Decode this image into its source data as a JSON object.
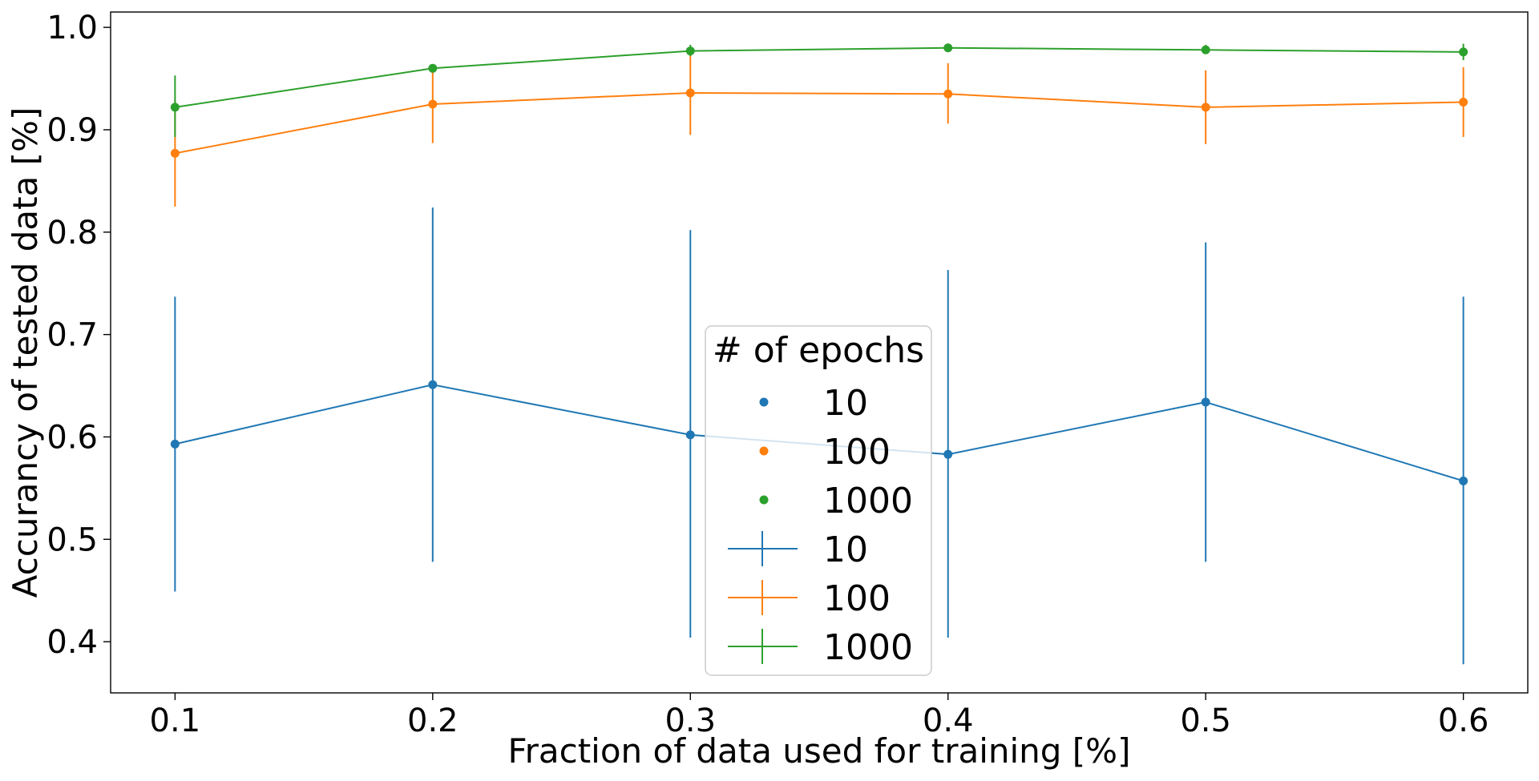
{
  "chart_data": {
    "type": "line",
    "title": "",
    "xlabel": "Fraction of data used for training [%]",
    "ylabel": "Accurancy of tested data [%]",
    "xlim": [
      0.075,
      0.625
    ],
    "ylim": [
      0.35,
      1.015
    ],
    "x": [
      0.1,
      0.2,
      0.3,
      0.4,
      0.5,
      0.6
    ],
    "xticks": [
      0.1,
      0.2,
      0.3,
      0.4,
      0.5,
      0.6
    ],
    "xtick_labels": [
      "0.1",
      "0.2",
      "0.3",
      "0.4",
      "0.5",
      "0.6"
    ],
    "yticks": [
      0.4,
      0.5,
      0.6,
      0.7,
      0.8,
      0.9,
      1.0
    ],
    "ytick_labels": [
      "0.4",
      "0.5",
      "0.6",
      "0.7",
      "0.8",
      "0.9",
      "1.0"
    ],
    "grid": false,
    "series": [
      {
        "name": "10",
        "color": "#1f77b4",
        "values": [
          0.593,
          0.651,
          0.602,
          0.583,
          0.634,
          0.557
        ],
        "err_low": [
          0.449,
          0.478,
          0.404,
          0.404,
          0.478,
          0.378
        ],
        "err_high": [
          0.737,
          0.824,
          0.802,
          0.763,
          0.79,
          0.737
        ]
      },
      {
        "name": "100",
        "color": "#ff7f0e",
        "values": [
          0.877,
          0.925,
          0.936,
          0.935,
          0.922,
          0.927
        ],
        "err_low": [
          0.825,
          0.887,
          0.895,
          0.906,
          0.886,
          0.893
        ],
        "err_high": [
          0.929,
          0.963,
          0.977,
          0.965,
          0.958,
          0.961
        ]
      },
      {
        "name": "1000",
        "color": "#2ca02c",
        "values": [
          0.922,
          0.96,
          0.977,
          0.98,
          0.978,
          0.976
        ],
        "err_low": [
          0.893,
          0.958,
          0.972,
          0.978,
          0.974,
          0.968
        ],
        "err_high": [
          0.953,
          0.963,
          0.983,
          0.982,
          0.983,
          0.984
        ]
      }
    ],
    "legend": {
      "title": "# of epochs",
      "placement": "lower-center",
      "entries": [
        {
          "label": "10",
          "marker": "dot",
          "color": "#1f77b4"
        },
        {
          "label": "100",
          "marker": "dot",
          "color": "#ff7f0e"
        },
        {
          "label": "1000",
          "marker": "dot",
          "color": "#2ca02c"
        },
        {
          "label": "10",
          "marker": "errorbar",
          "color": "#1f77b4"
        },
        {
          "label": "100",
          "marker": "errorbar",
          "color": "#ff7f0e"
        },
        {
          "label": "1000",
          "marker": "errorbar",
          "color": "#2ca02c"
        }
      ]
    }
  }
}
